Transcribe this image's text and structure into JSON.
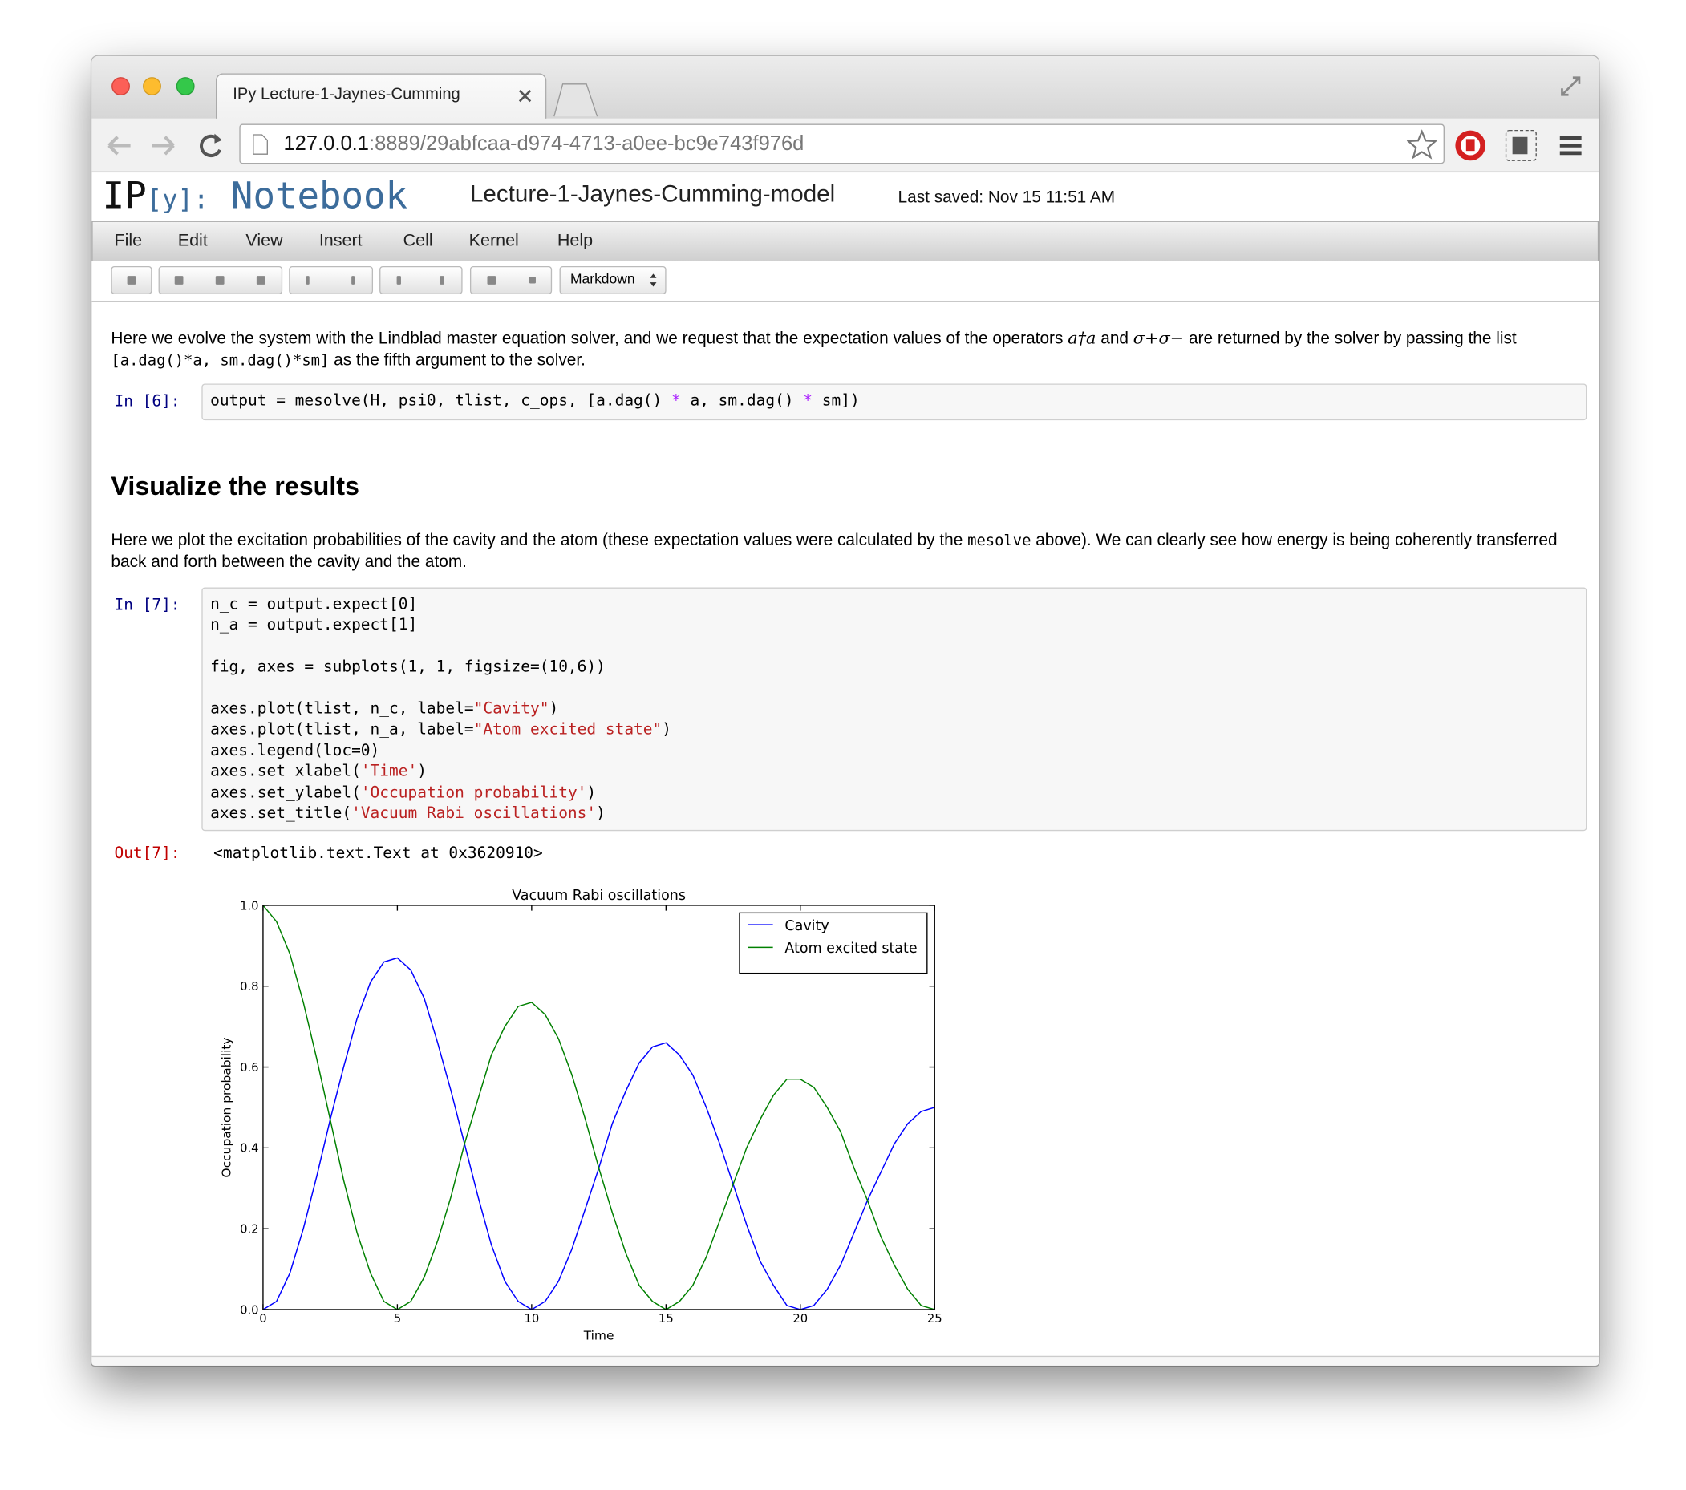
{
  "browser": {
    "tab_title": "IPy Lecture-1-Jaynes-Cumming",
    "url_host": "127.0.0.1",
    "url_rest": ":8889/29abfcaa-d974-4713-a0ee-bc9e743f976d"
  },
  "header": {
    "logo_ip": "IP",
    "logo_y": "[y]:",
    "logo_name": "Notebook",
    "notebook_title": "Lecture-1-Jaynes-Cumming-model",
    "last_saved": "Last saved: Nov 15 11:51 AM"
  },
  "menu": [
    "File",
    "Edit",
    "View",
    "Insert",
    "Cell",
    "Kernel",
    "Help"
  ],
  "toolbar": {
    "cell_type": "Markdown"
  },
  "cells": [
    {
      "paragraphs": [
        [
          "Here we evolve the system with the Lindblad master equation solver, and we request that the expectation values of the operators ",
          {
            "text": "a†a",
            "kind": "math"
          },
          " and ",
          {
            "text": "σ+σ−",
            "kind": "math"
          },
          " are returned by the solver by passing the list ",
          {
            "text": "[a.dag()*a, sm.dag()*sm]",
            "kind": "code"
          },
          " as the fifth argument to the solver."
        ]
      ]
    },
    {
      "prompt": "In [6]:",
      "blocks": [
        [
          [
            "output = mesolve(H, psi0, tlist, c_ops, [a.dag() ",
            {
              "text": "*",
              "color": "#aa22ff"
            },
            " a, sm.dag() ",
            {
              "text": "*",
              "color": "#aa22ff"
            },
            " sm])"
          ]
        ]
      ]
    },
    {
      "heading": "Visualize the results"
    },
    {
      "paragraphs": [
        [
          "Here we plot the excitation probabilities of the cavity and the atom (these expectation values were calculated by the ",
          {
            "text": "mesolve",
            "kind": "code"
          },
          " above). We can clearly see how energy is being coherently transferred back and forth between the cavity and the atom."
        ]
      ]
    },
    {
      "prompt": "In [7]:",
      "blocks": [
        [
          [
            "n_c = output.expect[0]"
          ],
          [
            "n_a = output.expect[1]"
          ]
        ],
        [
          [
            "fig, axes = subplots(1, 1, figsize=(10,6))"
          ]
        ],
        [
          [
            "axes.plot(tlist, n_c, label=",
            {
              "text": "\"Cavity\"",
              "color": "#ba2121"
            },
            ")"
          ],
          [
            "axes.plot(tlist, n_a, label=",
            {
              "text": "\"Atom excited state\"",
              "color": "#ba2121"
            },
            ")"
          ],
          [
            "axes.legend(loc=0)"
          ],
          [
            "axes.set_xlabel(",
            {
              "text": "'Time'",
              "color": "#ba2121"
            },
            ")"
          ],
          [
            "axes.set_ylabel(",
            {
              "text": "'Occupation probability'",
              "color": "#ba2121"
            },
            ")"
          ],
          [
            "axes.set_title(",
            {
              "text": "'Vacuum Rabi oscillations'",
              "color": "#ba2121"
            },
            ")"
          ]
        ]
      ],
      "out_prompt": "Out[7]:",
      "output": "<matplotlib.text.Text at 0x3620910>"
    }
  ],
  "chart_data": {
    "type": "line",
    "title": "Vacuum Rabi oscillations",
    "xlabel": "Time",
    "ylabel": "Occupation probability",
    "x": [
      0,
      0.5,
      1,
      1.5,
      2,
      2.5,
      3,
      3.5,
      4,
      4.5,
      5,
      5.5,
      6,
      6.5,
      7,
      7.5,
      8,
      8.5,
      9,
      9.5,
      10,
      10.5,
      11,
      11.5,
      12,
      12.5,
      13,
      13.5,
      14,
      14.5,
      15,
      15.5,
      16,
      16.5,
      17,
      17.5,
      18,
      18.5,
      19,
      19.5,
      20,
      20.5,
      21,
      21.5,
      22,
      22.5,
      23,
      23.5,
      24,
      24.5,
      25
    ],
    "series": [
      {
        "name": "Cavity",
        "color": "#0000ff",
        "values": [
          0,
          0.02,
          0.09,
          0.2,
          0.33,
          0.47,
          0.6,
          0.72,
          0.81,
          0.86,
          0.87,
          0.84,
          0.77,
          0.66,
          0.54,
          0.41,
          0.28,
          0.16,
          0.07,
          0.02,
          0,
          0.02,
          0.07,
          0.15,
          0.25,
          0.35,
          0.46,
          0.54,
          0.61,
          0.65,
          0.66,
          0.63,
          0.58,
          0.5,
          0.41,
          0.31,
          0.21,
          0.12,
          0.06,
          0.01,
          0,
          0.01,
          0.05,
          0.11,
          0.19,
          0.27,
          0.34,
          0.41,
          0.46,
          0.49,
          0.5
        ]
      },
      {
        "name": "Atom excited state",
        "color": "#008000",
        "values": [
          1,
          0.96,
          0.88,
          0.76,
          0.62,
          0.47,
          0.32,
          0.19,
          0.09,
          0.02,
          0,
          0.02,
          0.08,
          0.17,
          0.28,
          0.41,
          0.52,
          0.63,
          0.7,
          0.75,
          0.76,
          0.73,
          0.67,
          0.58,
          0.47,
          0.35,
          0.24,
          0.14,
          0.06,
          0.02,
          0,
          0.02,
          0.06,
          0.13,
          0.22,
          0.31,
          0.4,
          0.47,
          0.53,
          0.57,
          0.57,
          0.55,
          0.5,
          0.44,
          0.35,
          0.27,
          0.18,
          0.11,
          0.05,
          0.01,
          0
        ]
      }
    ],
    "xlim": [
      0,
      25
    ],
    "ylim": [
      0,
      1
    ],
    "xticks": [
      0,
      5,
      10,
      15,
      20,
      25
    ],
    "yticks": [
      {
        "value": 0,
        "label": "0.0"
      },
      0.2,
      0.4,
      0.6,
      0.8,
      {
        "value": 1,
        "label": "1.0"
      }
    ],
    "legend": "upper right"
  }
}
